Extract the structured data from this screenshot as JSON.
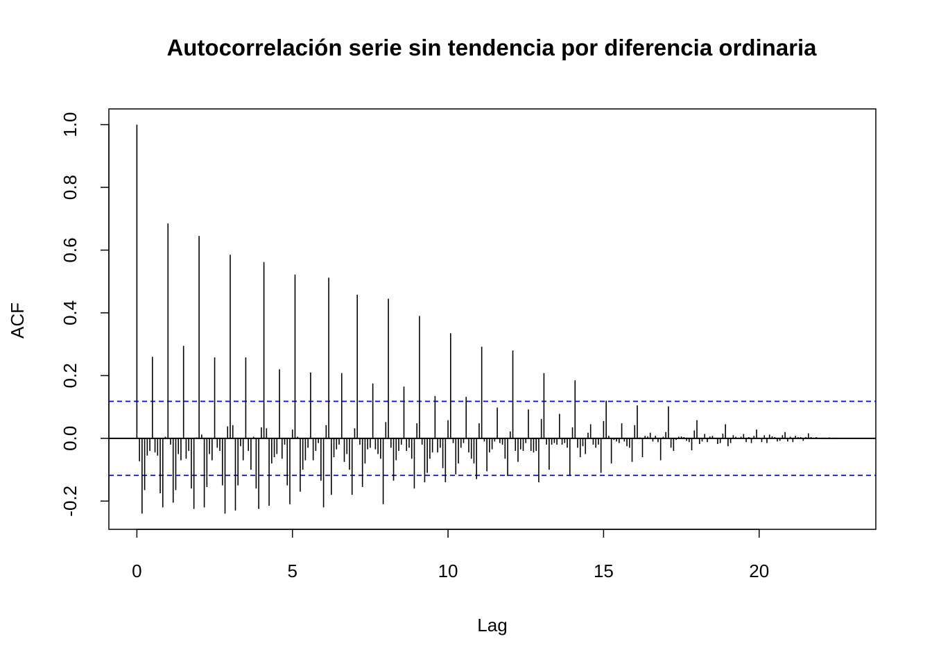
{
  "chart_data": {
    "type": "bar",
    "title": "Autocorrelación serie sin tendencia por diferencia ordinaria",
    "xlabel": "Lag",
    "ylabel": "ACF",
    "xlim": [
      -0.9,
      23.75
    ],
    "ylim": [
      -0.29,
      1.05
    ],
    "x_ticks": [
      0,
      5,
      10,
      15,
      20
    ],
    "x_tick_labels": [
      "0",
      "5",
      "10",
      "15",
      "20"
    ],
    "y_ticks": [
      -0.2,
      0.0,
      0.2,
      0.4,
      0.6,
      0.8,
      1.0
    ],
    "y_tick_labels": [
      "-0.2",
      "0.0",
      "0.2",
      "0.4",
      "0.6",
      "0.8",
      "1.0"
    ],
    "lag_step": 0.08333333,
    "zero_line": 0,
    "confidence_band": [
      0.118,
      -0.118
    ],
    "colors": {
      "bars": "#000000",
      "confidence": "#0000ff",
      "axes": "#000000"
    },
    "acf": [
      1.0,
      -0.073,
      -0.24,
      -0.165,
      -0.055,
      -0.04,
      0.26,
      -0.045,
      -0.055,
      -0.175,
      -0.22,
      0.005,
      0.685,
      -0.02,
      -0.205,
      -0.165,
      -0.05,
      -0.07,
      0.295,
      -0.065,
      -0.04,
      -0.16,
      -0.225,
      0.003,
      0.645,
      0.012,
      -0.22,
      -0.155,
      -0.05,
      -0.07,
      0.258,
      -0.03,
      -0.04,
      -0.15,
      -0.24,
      0.038,
      0.585,
      0.042,
      -0.23,
      -0.15,
      -0.025,
      -0.07,
      0.258,
      -0.04,
      -0.1,
      0.005,
      -0.16,
      -0.225,
      0.035,
      0.562,
      0.032,
      -0.215,
      -0.08,
      -0.06,
      -0.05,
      0.22,
      -0.065,
      -0.02,
      -0.15,
      -0.21,
      0.028,
      0.522,
      0.005,
      -0.17,
      -0.1,
      -0.07,
      -0.03,
      0.21,
      -0.07,
      -0.04,
      -0.015,
      -0.135,
      -0.22,
      0.042,
      0.512,
      -0.18,
      -0.06,
      -0.035,
      -0.02,
      0.208,
      -0.075,
      -0.05,
      -0.1,
      -0.18,
      0.032,
      0.458,
      -0.02,
      -0.155,
      -0.08,
      -0.035,
      -0.03,
      0.175,
      -0.035,
      -0.05,
      -0.065,
      -0.21,
      0.052,
      0.445,
      -0.03,
      -0.135,
      -0.07,
      -0.04,
      -0.02,
      0.165,
      -0.04,
      -0.03,
      -0.065,
      -0.16,
      0.048,
      0.39,
      -0.02,
      -0.14,
      -0.11,
      -0.065,
      -0.045,
      0.135,
      -0.045,
      -0.03,
      -0.095,
      -0.14,
      0.058,
      0.335,
      -0.015,
      -0.115,
      -0.08,
      -0.03,
      -0.015,
      0.132,
      -0.045,
      -0.065,
      -0.08,
      -0.13,
      0.048,
      0.292,
      -0.01,
      -0.105,
      -0.045,
      -0.035,
      -0.01,
      0.098,
      -0.015,
      -0.02,
      -0.065,
      -0.12,
      0.022,
      0.28,
      -0.04,
      -0.075,
      -0.035,
      -0.04,
      -0.015,
      0.092,
      -0.04,
      -0.045,
      -0.04,
      -0.14,
      0.062,
      0.208,
      -0.02,
      -0.1,
      -0.02,
      -0.015,
      -0.02,
      0.078,
      -0.02,
      -0.015,
      -0.03,
      -0.12,
      0.035,
      0.185,
      -0.03,
      -0.06,
      -0.025,
      -0.05,
      0.018,
      0.045,
      -0.02,
      -0.03,
      -0.02,
      -0.11,
      0.055,
      0.12,
      0.008,
      -0.08,
      -0.005,
      -0.01,
      -0.015,
      0.048,
      -0.01,
      -0.025,
      -0.03,
      -0.075,
      0.042,
      0.105,
      0.003,
      -0.06,
      0.008,
      0.006,
      0.018,
      -0.01,
      0.008,
      -0.012,
      -0.07,
      0.005,
      0.02,
      0.102,
      -0.03,
      -0.04,
      -0.005,
      0.005,
      0.006,
      0.004,
      -0.008,
      -0.012,
      -0.038,
      0.025,
      0.058,
      -0.018,
      -0.01,
      0.014,
      -0.012,
      0.006,
      0.008,
      0.002,
      -0.018,
      -0.015,
      0.015,
      0.045,
      -0.025,
      -0.015,
      0.01,
      0.005,
      0.002,
      0.005,
      0.014,
      -0.012,
      0.004,
      -0.015,
      0.008,
      0.028,
      0.002,
      -0.012,
      0.01,
      -0.015,
      0.012,
      0.006,
      0.004,
      -0.01,
      -0.008,
      0.01,
      0.02,
      -0.01,
      0.005,
      -0.012,
      0.008,
      0.004,
      0.004,
      -0.008,
      0.004,
      0.016,
      0.004,
      0.002,
      0.004,
      0.001,
      0.002,
      0.002,
      -0.002,
      0.003,
      0.001,
      -0.002,
      0.002,
      0.001
    ]
  }
}
